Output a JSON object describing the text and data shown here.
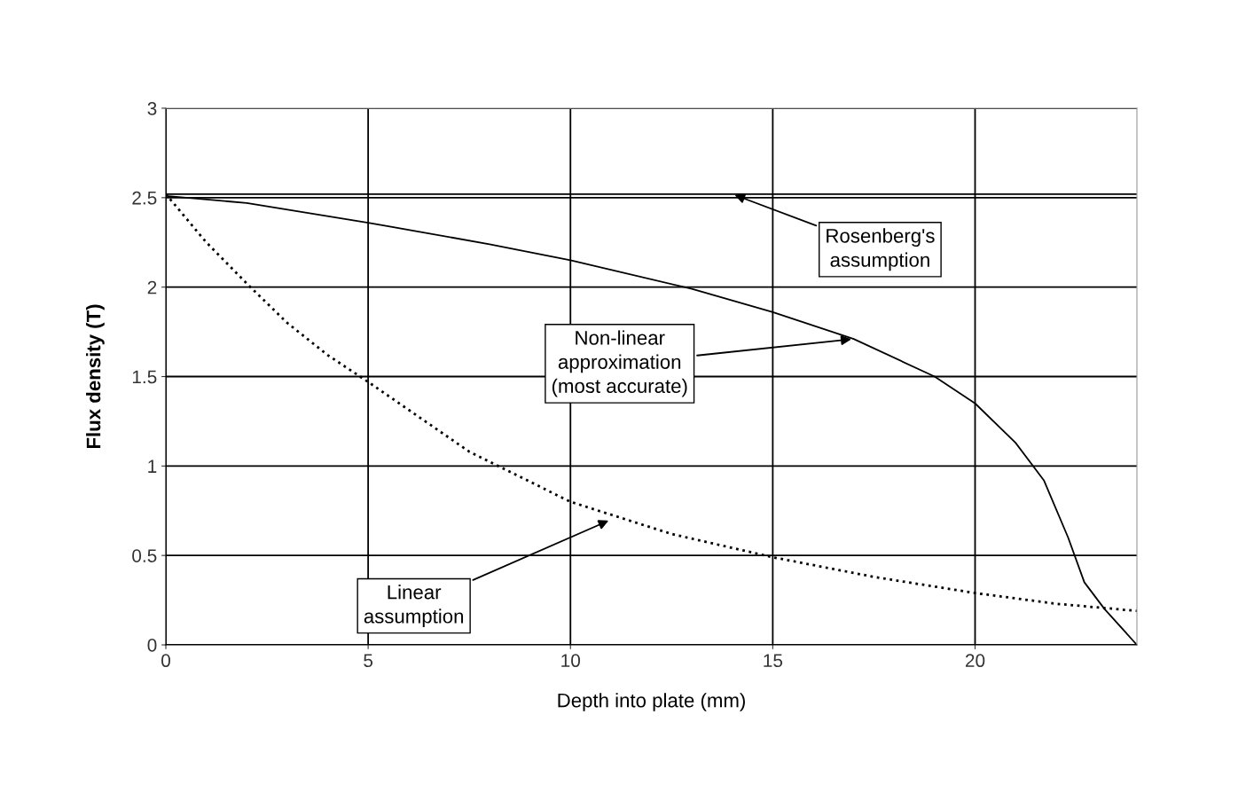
{
  "chart_data": {
    "type": "line",
    "xlabel": "Depth into plate (mm)",
    "ylabel": "Flux density (T)",
    "xlim": [
      0,
      24
    ],
    "xticks": [
      0,
      5,
      10,
      15,
      20
    ],
    "ylim": [
      0,
      3
    ],
    "yticks": [
      0,
      0.5,
      1,
      1.5,
      2,
      2.5,
      3
    ],
    "grid": true,
    "legend": false,
    "marker": "none",
    "series": [
      {
        "color": "#000000",
        "line_style": "solid",
        "x": [
          0,
          24
        ],
        "values": [
          2.52,
          2.52
        ]
      },
      {
        "color": "#000000",
        "line_style": "solid",
        "x": [
          0,
          2,
          5,
          8,
          10,
          13,
          15,
          17,
          19,
          20,
          21,
          21.7,
          22.3,
          22.7,
          23.2,
          24
        ],
        "values": [
          2.51,
          2.47,
          2.36,
          2.24,
          2.15,
          1.99,
          1.86,
          1.71,
          1.5,
          1.35,
          1.13,
          0.92,
          0.6,
          0.35,
          0.2,
          0.0
        ]
      },
      {
        "color": "#000000",
        "line_style": "dotted",
        "x": [
          0,
          1,
          2,
          3,
          4,
          5,
          7.5,
          10,
          12.5,
          15,
          17.5,
          20,
          22,
          24
        ],
        "values": [
          2.52,
          2.25,
          2.02,
          1.8,
          1.62,
          1.47,
          1.08,
          0.8,
          0.62,
          0.49,
          0.38,
          0.29,
          0.23,
          0.19
        ]
      }
    ],
    "annotations": [
      {
        "text": "Rosenberg's\nassumption",
        "x": 14,
        "y": 2.52
      },
      {
        "text": "Non-linear\napproximation\n(most accurate)",
        "x": 17,
        "y": 1.71
      },
      {
        "text": "Linear\nassumption",
        "x": 11.0,
        "y": 0.7
      }
    ]
  }
}
